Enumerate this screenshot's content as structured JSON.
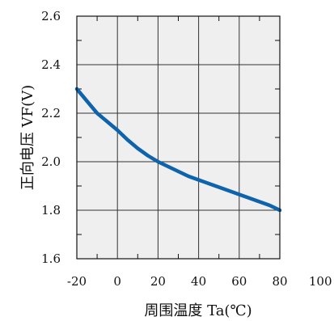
{
  "chart_data": {
    "type": "line",
    "title": "",
    "xlabel": "周围温度 Ta(℃)",
    "ylabel": "正向电压 VF(V)",
    "xlim": [
      -20,
      100
    ],
    "ylim": [
      1.6,
      2.6
    ],
    "x_ticks": [
      "-20",
      "0",
      "20",
      "40",
      "60",
      "80",
      "100"
    ],
    "y_ticks": [
      "1.6",
      "1.8",
      "2.0",
      "2.2",
      "2.4",
      "2.6"
    ],
    "grid": true,
    "series": [
      {
        "x": [
          -20,
          -15,
          -10,
          -5,
          0,
          5,
          10,
          15,
          20,
          25,
          30,
          35,
          40,
          45,
          50,
          55,
          60,
          65,
          70,
          75,
          80
        ],
        "y": [
          2.3,
          2.25,
          2.2,
          2.165,
          2.13,
          2.09,
          2.055,
          2.025,
          2.0,
          1.98,
          1.96,
          1.94,
          1.925,
          1.91,
          1.895,
          1.88,
          1.865,
          1.85,
          1.835,
          1.82,
          1.8
        ]
      }
    ]
  },
  "colors": {
    "plot_background": "#efefef",
    "grid": "#333333",
    "line": "#0e63ad",
    "text": "#111111"
  }
}
